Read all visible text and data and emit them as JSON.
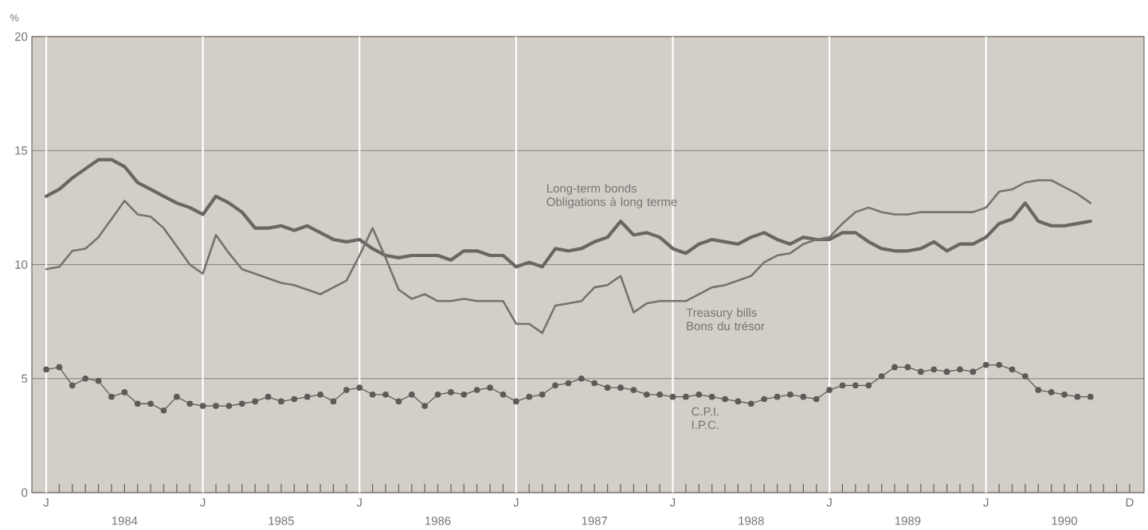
{
  "chart_data": {
    "type": "line",
    "ylabel": "%",
    "categories": [
      "J",
      null,
      null,
      null,
      null,
      null,
      null,
      null,
      null,
      null,
      null,
      null,
      "J",
      null,
      null,
      null,
      null,
      null,
      null,
      null,
      null,
      null,
      null,
      null,
      "J",
      null,
      null,
      null,
      null,
      null,
      null,
      null,
      null,
      null,
      null,
      null,
      "J",
      null,
      null,
      null,
      null,
      null,
      null,
      null,
      null,
      null,
      null,
      null,
      "J",
      null,
      null,
      null,
      null,
      null,
      null,
      null,
      null,
      null,
      null,
      null,
      "J",
      null,
      null,
      null,
      null,
      null,
      null,
      null,
      null,
      null,
      null,
      null,
      "J",
      null,
      null,
      null,
      null,
      null,
      null,
      null,
      null,
      null,
      null,
      "D"
    ],
    "annotations": [
      "1984",
      "1985",
      "1986",
      "1987",
      "1988",
      "1989",
      "1990"
    ],
    "series": [
      {
        "name": "Long-term bonds Obligations à long terme",
        "color": "#6b6661",
        "marker": "none",
        "line_style": "solid",
        "values": [
          13.0,
          13.3,
          13.8,
          14.2,
          14.6,
          14.6,
          14.3,
          13.6,
          13.3,
          13.0,
          12.7,
          12.5,
          12.2,
          13.0,
          12.7,
          12.3,
          11.6,
          11.6,
          11.7,
          11.5,
          11.7,
          11.4,
          11.1,
          11.0,
          11.1,
          10.7,
          10.4,
          10.3,
          10.4,
          10.4,
          10.4,
          10.2,
          10.6,
          10.6,
          10.4,
          10.4,
          9.9,
          10.1,
          9.9,
          10.7,
          10.6,
          10.7,
          11.0,
          11.2,
          11.9,
          11.3,
          11.4,
          11.2,
          10.7,
          10.5,
          10.9,
          11.1,
          11.0,
          10.9,
          11.2,
          11.4,
          11.1,
          10.9,
          11.2,
          11.1,
          11.1,
          11.4,
          11.4,
          11.0,
          10.7,
          10.6,
          10.6,
          10.7,
          11.0,
          10.6,
          10.9,
          10.9,
          11.2,
          11.8,
          12.0,
          12.7,
          11.9,
          11.7,
          11.7,
          11.8,
          11.9,
          null,
          null,
          null
        ]
      },
      {
        "name": "Treasury bills Bons du trésor",
        "color": "#77726d",
        "marker": "none",
        "line_style": "solid",
        "values": [
          9.8,
          9.9,
          10.6,
          10.7,
          11.2,
          12.0,
          12.8,
          12.2,
          12.1,
          11.6,
          10.8,
          10.0,
          9.6,
          11.3,
          10.5,
          9.8,
          9.6,
          9.4,
          9.2,
          9.1,
          8.9,
          8.7,
          9.0,
          9.3,
          10.4,
          11.6,
          10.3,
          8.9,
          8.5,
          8.7,
          8.4,
          8.4,
          8.5,
          8.4,
          8.4,
          8.4,
          7.4,
          7.4,
          7.0,
          8.2,
          8.3,
          8.4,
          9.0,
          9.1,
          9.5,
          7.9,
          8.3,
          8.4,
          8.4,
          8.4,
          8.7,
          9.0,
          9.1,
          9.3,
          9.5,
          10.1,
          10.4,
          10.5,
          10.9,
          11.1,
          11.2,
          11.8,
          12.3,
          12.5,
          12.3,
          12.2,
          12.2,
          12.3,
          12.3,
          12.3,
          12.3,
          12.3,
          12.5,
          13.2,
          13.3,
          13.6,
          13.7,
          13.7,
          13.4,
          13.1,
          12.7,
          null,
          null,
          null
        ]
      },
      {
        "name": "C.P.I. I.P.C.",
        "color": "#5e5a56",
        "marker": "circle",
        "line_style": "solid",
        "values": [
          5.4,
          5.5,
          4.7,
          5.0,
          4.9,
          4.2,
          4.4,
          3.9,
          3.9,
          3.6,
          4.2,
          3.9,
          3.8,
          3.8,
          3.8,
          3.9,
          4.0,
          4.2,
          4.0,
          4.1,
          4.2,
          4.3,
          4.0,
          4.5,
          4.6,
          4.3,
          4.3,
          4.0,
          4.3,
          3.8,
          4.3,
          4.4,
          4.3,
          4.5,
          4.6,
          4.3,
          4.0,
          4.2,
          4.3,
          4.7,
          4.8,
          5.0,
          4.8,
          4.6,
          4.6,
          4.5,
          4.3,
          4.3,
          4.2,
          4.2,
          4.3,
          4.2,
          4.1,
          4.0,
          3.9,
          4.1,
          4.2,
          4.3,
          4.2,
          4.1,
          4.5,
          4.7,
          4.7,
          4.7,
          5.1,
          5.5,
          5.5,
          5.3,
          5.4,
          5.3,
          5.4,
          5.3,
          5.6,
          5.6,
          5.4,
          5.1,
          4.5,
          4.4,
          4.3,
          4.2,
          4.2,
          null,
          null,
          null
        ]
      }
    ],
    "ylim": [
      0,
      20
    ],
    "yticks": [
      0,
      5,
      10,
      15,
      20
    ],
    "grid": true
  }
}
